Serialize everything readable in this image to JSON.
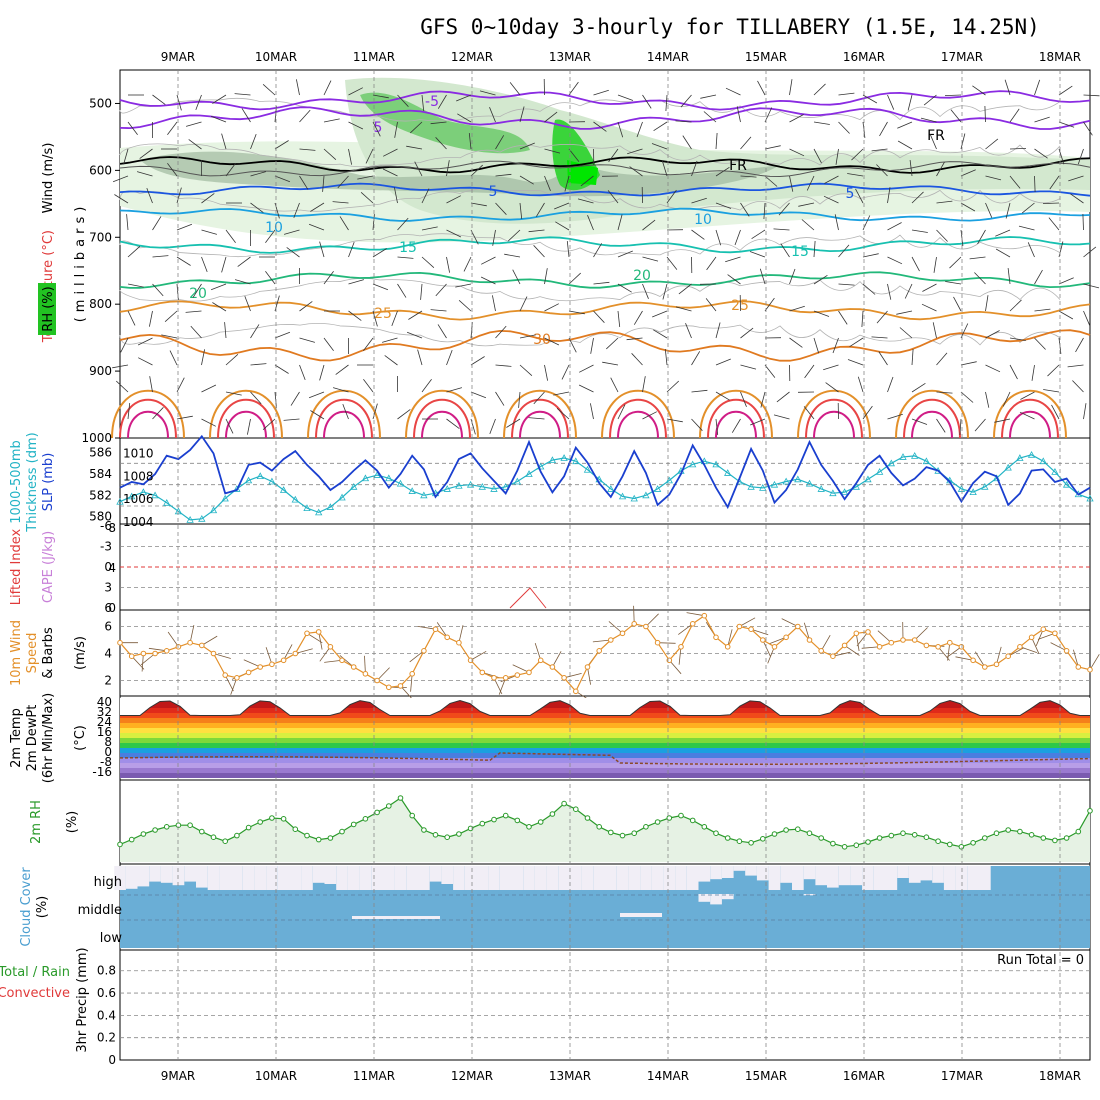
{
  "title": "GFS 0~10day 3-hourly for TILLABERY (1.5E, 14.25N)",
  "dates": [
    "9MAR",
    "10MAR",
    "11MAR",
    "12MAR",
    "13MAR",
    "14MAR",
    "15MAR",
    "16MAR",
    "17MAR",
    "18MAR"
  ],
  "panels": {
    "upper": {
      "label_wind": "Wind (m/s)",
      "label_temp": "Temperature (°C)",
      "label_rh": "RH (%)",
      "label_mb": "(millibars)",
      "pressure_ticks": [
        "500",
        "600",
        "700",
        "800",
        "900",
        "1000"
      ],
      "contour_labels": [
        "-5",
        "5",
        "FR",
        "FR",
        "5",
        "5",
        "10",
        "10",
        "15",
        "15",
        "20",
        "20",
        "25",
        "25",
        "30"
      ]
    },
    "thickness": {
      "label1": "1000-500mb",
      "label2": "Thickness (dm)",
      "label3": "SLP (mb)",
      "left_ticks": [
        "586",
        "584",
        "582",
        "580"
      ],
      "right_ticks": [
        "1010",
        "1008",
        "1006",
        "1004"
      ]
    },
    "lifted": {
      "label1": "Lifted Index",
      "label2": "CAPE (J/kg)",
      "left_ticks": [
        "-6",
        "-3",
        "0",
        "3",
        "6"
      ],
      "right_ticks": [
        "0",
        "4",
        "8"
      ]
    },
    "wind10": {
      "label1": "10m Wind",
      "label2": "Speed",
      "label3": "& Barbs",
      "label4": "(m/s)",
      "ticks": [
        "6",
        "4",
        "2"
      ]
    },
    "temp2m": {
      "label1": "2m Temp",
      "label2": "2m DewPt",
      "label3": "(6hr Min/Max)",
      "label4": "(°C)",
      "ticks": [
        "40",
        "32",
        "24",
        "16",
        "8",
        "0",
        "-8",
        "-16"
      ]
    },
    "rh2m": {
      "label1": "2m RH",
      "label2": "(%)"
    },
    "cloud": {
      "label1": "Cloud Cover",
      "label2": "(%)",
      "levels": [
        "high",
        "middle",
        "low"
      ]
    },
    "precip": {
      "label1": "Total / Rain",
      "label2": "Convective",
      "label3": "3hr Precip (mm)",
      "ticks": [
        "0.8",
        "0.6",
        "0.4",
        "0.2",
        "0"
      ],
      "run_total": "Run Total = 0"
    }
  },
  "colors": {
    "slp": "#1a3fcf",
    "thickness": "#22b3c5",
    "wind10": "#e3902a",
    "rh2m": "#2a9a2a",
    "cloud": "#6aaed6",
    "cape": "#c880d8",
    "lifted": "#e03a3a"
  },
  "chart_data": [
    {
      "type": "line",
      "title": "SLP (mb)",
      "x_interval_hours": 3,
      "ylim": [
        1004,
        1011
      ],
      "values": [
        1007,
        1007.5,
        1007.3,
        1008.2,
        1009.8,
        1009.5,
        1010.3,
        1011.5,
        1010,
        1006.5,
        1006.8,
        1009,
        1009.2,
        1008.5,
        1009.5,
        1010.2,
        1009,
        1008,
        1006.8,
        1007.5,
        1008.5,
        1009.4,
        1008.5,
        1007,
        1008.2,
        1009.8,
        1008.6,
        1006.2,
        1007.5,
        1009.5,
        1010,
        1008.7,
        1007.6,
        1006.5,
        1008.5,
        1011,
        1008.4,
        1006.6,
        1008,
        1010.5,
        1009.2,
        1007.4,
        1006.2,
        1008,
        1010.2,
        1008.3,
        1005.5,
        1006.4,
        1008.2,
        1010.7,
        1009,
        1007,
        1005.3,
        1007.8,
        1010.4,
        1008.5,
        1005.7,
        1006.8,
        1008.6,
        1011,
        1009,
        1007.6,
        1006,
        1007.4,
        1009,
        1009.8,
        1008.3,
        1007.2,
        1007.8,
        1008.8,
        1008.5,
        1007.5,
        1005.8,
        1007.4,
        1008.4,
        1008,
        1005.5,
        1006.5,
        1008.5,
        1008.6,
        1007.5,
        1007.8,
        1006.4,
        1007
      ]
    },
    {
      "type": "line",
      "title": "1000-500mb Thickness (dm)",
      "x_interval_hours": 3,
      "ylim": [
        579.5,
        587
      ],
      "values": [
        581.4,
        581.9,
        582.3,
        582.0,
        581.3,
        580.5,
        579.7,
        579.8,
        580.6,
        581.7,
        582.6,
        583.4,
        583.8,
        583.3,
        582.5,
        581.6,
        580.8,
        580.4,
        580.9,
        581.8,
        582.8,
        583.6,
        583.9,
        583.6,
        583.1,
        582.4,
        582.0,
        582.2,
        582.6,
        582.9,
        583.0,
        582.8,
        582.6,
        582.8,
        583.3,
        584.0,
        584.7,
        585.3,
        585.5,
        585.2,
        584.4,
        583.5,
        582.6,
        581.9,
        581.7,
        582.0,
        582.6,
        583.4,
        584.3,
        584.9,
        585.2,
        584.9,
        584.1,
        583.3,
        582.8,
        582.7,
        583.0,
        583.3,
        583.5,
        583.1,
        582.6,
        582.2,
        582.3,
        582.8,
        583.5,
        584.2,
        585.0,
        585.6,
        585.7,
        585.2,
        584.3,
        583.4,
        582.6,
        582.3,
        582.8,
        583.6,
        584.6,
        585.5,
        585.8,
        585.2,
        584.2,
        583.0,
        582.1,
        581.7
      ]
    },
    {
      "type": "line",
      "title": "10m Wind Speed (m/s)",
      "x_interval_hours": 3,
      "ylim": [
        1,
        7
      ],
      "values": [
        4.8,
        3.8,
        4.0,
        4.0,
        4.2,
        4.5,
        4.8,
        4.6,
        4.0,
        2.4,
        2.2,
        2.6,
        3.0,
        3.2,
        3.5,
        4.0,
        5.5,
        5.6,
        4.5,
        3.5,
        3.0,
        2.5,
        2.0,
        1.5,
        1.6,
        2.5,
        4.2,
        5.8,
        5.2,
        4.8,
        3.5,
        2.6,
        2.2,
        2.2,
        2.4,
        2.6,
        3.5,
        3.0,
        2.2,
        1.2,
        3.0,
        4.2,
        5.0,
        5.5,
        6.2,
        6.0,
        4.8,
        3.5,
        4.5,
        6.2,
        6.8,
        5.2,
        4.5,
        6.0,
        5.8,
        5.0,
        4.5,
        5.2,
        6.0,
        5.0,
        4.2,
        3.8,
        4.6,
        5.5,
        5.6,
        4.5,
        4.8,
        5.0,
        5.0,
        4.6,
        4.5,
        4.8,
        4.5,
        3.5,
        3.0,
        3.2,
        3.8,
        4.5,
        5.2,
        5.8,
        5.5,
        4.2,
        3.0,
        2.8
      ]
    },
    {
      "type": "line",
      "title": "2m RH (%)",
      "x_interval_hours": 3,
      "ylim": [
        0,
        100
      ],
      "values": [
        22,
        28,
        35,
        40,
        44,
        46,
        46,
        38,
        31,
        26,
        33,
        43,
        50,
        55,
        54,
        41,
        33,
        28,
        30,
        38,
        47,
        54,
        62,
        70,
        80,
        58,
        40,
        34,
        31,
        35,
        42,
        48,
        53,
        58,
        52,
        44,
        50,
        60,
        73,
        66,
        55,
        44,
        37,
        33,
        36,
        44,
        50,
        55,
        58,
        52,
        44,
        36,
        30,
        26,
        24,
        29,
        35,
        40,
        41,
        36,
        30,
        23,
        19,
        21,
        25,
        30,
        33,
        36,
        34,
        31,
        26,
        22,
        19,
        24,
        30,
        36,
        40,
        38,
        34,
        30,
        27,
        30,
        38,
        64
      ]
    },
    {
      "type": "area",
      "title": "Cloud Cover (%)",
      "series": [
        {
          "name": "high",
          "values": [
            0,
            5,
            15,
            35,
            30,
            20,
            35,
            10,
            0,
            0,
            0,
            0,
            0,
            0,
            0,
            0,
            0,
            30,
            25,
            0,
            0,
            0,
            0,
            0,
            0,
            0,
            0,
            35,
            25,
            0,
            0,
            0,
            0,
            0,
            0,
            0,
            0,
            0,
            0,
            0,
            0,
            0,
            0,
            0,
            0,
            0,
            0,
            0,
            0,
            0,
            35,
            45,
            50,
            80,
            60,
            40,
            0,
            30,
            0,
            45,
            20,
            10,
            20,
            20,
            0,
            0,
            0,
            50,
            30,
            40,
            30,
            0,
            0,
            0,
            0,
            0,
            0,
            0,
            0,
            0,
            0,
            0,
            0,
            0
          ]
        },
        {
          "name": "middle",
          "values": [
            100,
            100,
            100,
            100,
            100,
            100,
            100,
            100,
            100,
            100,
            100,
            100,
            100,
            100,
            100,
            100,
            100,
            100,
            100,
            100,
            100,
            100,
            100,
            100,
            100,
            100,
            100,
            100,
            100,
            100,
            100,
            100,
            100,
            100,
            100,
            100,
            100,
            100,
            100,
            100,
            100,
            100,
            100,
            100,
            100,
            100,
            100,
            100,
            100,
            100,
            70,
            60,
            80,
            100,
            100,
            100,
            100,
            100,
            100,
            95,
            100,
            100,
            100,
            100,
            100,
            100,
            100,
            100,
            100,
            100,
            100,
            100,
            100,
            100,
            100,
            100,
            100,
            100,
            100,
            100,
            100,
            100,
            100,
            100
          ]
        },
        {
          "name": "low",
          "values": [
            100,
            100,
            100,
            100,
            100,
            100,
            100,
            100,
            100,
            100,
            100,
            100,
            100,
            100,
            100,
            100,
            100,
            100,
            100,
            100,
            100,
            100,
            100,
            100,
            100,
            100,
            100,
            100,
            100,
            100,
            100,
            100,
            100,
            100,
            100,
            100,
            100,
            100,
            100,
            100,
            100,
            100,
            100,
            100,
            100,
            100,
            100,
            100,
            100,
            100,
            100,
            100,
            100,
            100,
            100,
            100,
            100,
            100,
            100,
            100,
            100,
            100,
            100,
            100,
            100,
            100,
            100,
            100,
            100,
            100,
            100,
            100,
            100,
            100,
            100,
            100,
            100,
            100,
            100,
            100,
            100,
            100,
            100,
            100
          ]
        }
      ]
    },
    {
      "type": "bar",
      "title": "3hr Precip (mm)",
      "x_interval_hours": 3,
      "ylim": [
        0,
        0.95
      ],
      "values": [
        0,
        0,
        0,
        0,
        0,
        0,
        0,
        0,
        0,
        0,
        0,
        0,
        0,
        0,
        0,
        0,
        0,
        0,
        0,
        0,
        0,
        0,
        0,
        0,
        0,
        0,
        0,
        0,
        0,
        0,
        0,
        0,
        0,
        0,
        0,
        0,
        0,
        0,
        0,
        0,
        0,
        0,
        0,
        0,
        0,
        0,
        0,
        0,
        0,
        0,
        0,
        0,
        0,
        0,
        0,
        0,
        0,
        0,
        0,
        0,
        0,
        0,
        0,
        0,
        0,
        0,
        0,
        0,
        0,
        0,
        0,
        0,
        0,
        0,
        0,
        0,
        0,
        0,
        0,
        0,
        0,
        0,
        0,
        0
      ]
    }
  ]
}
